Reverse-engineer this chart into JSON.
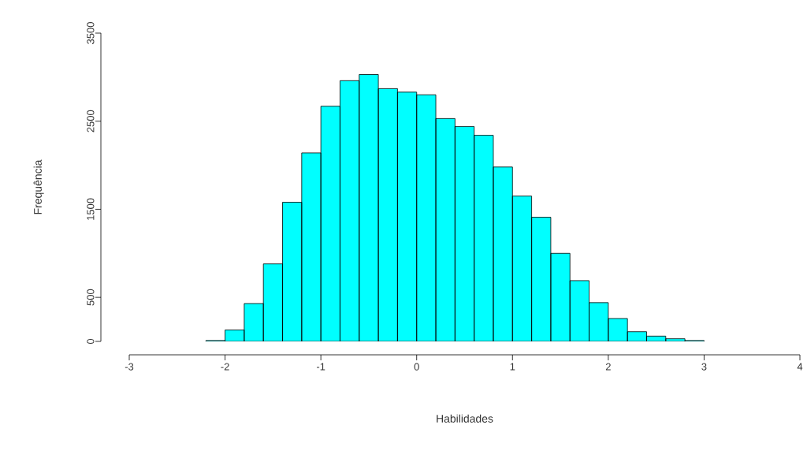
{
  "chart_data": {
    "type": "histogram",
    "xlabel": "Habilidades",
    "ylabel": "Frequência",
    "color": "#00ffff",
    "bins": [
      -2.2,
      -2.0,
      -1.8,
      -1.6,
      -1.4,
      -1.2,
      -1.0,
      -0.8,
      -0.6,
      -0.4,
      -0.2,
      0.0,
      0.2,
      0.4,
      0.6,
      0.8,
      1.0,
      1.2,
      1.4,
      1.6,
      1.8,
      2.0,
      2.2,
      2.4,
      2.6,
      2.8,
      3.0
    ],
    "values": [
      10,
      130,
      430,
      880,
      1580,
      2140,
      2670,
      2960,
      3030,
      2870,
      2830,
      2800,
      2530,
      2440,
      2340,
      1980,
      1650,
      1410,
      1000,
      690,
      440,
      260,
      110,
      60,
      30,
      10
    ],
    "xlim": [
      -3,
      4
    ],
    "xticks": [
      -3,
      -2,
      -1,
      0,
      1,
      2,
      3,
      4
    ],
    "ylim": [
      0,
      3500
    ],
    "yticks": [
      0,
      500,
      1500,
      2500,
      3500
    ]
  }
}
